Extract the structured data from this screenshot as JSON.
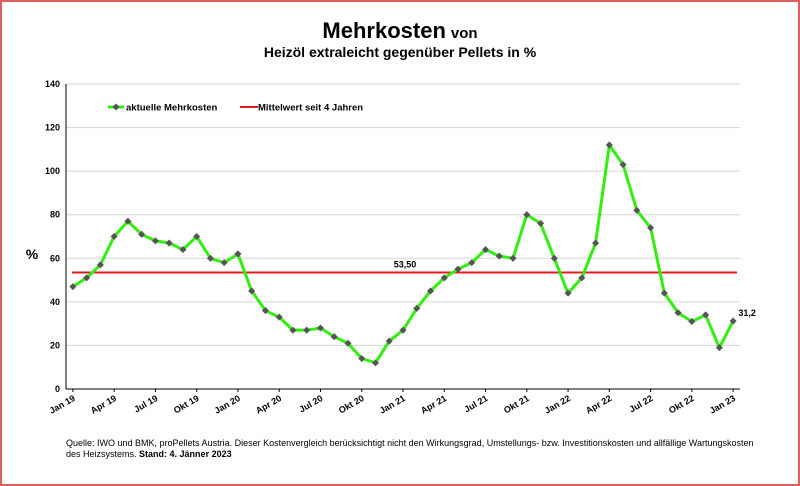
{
  "chart_data": {
    "type": "line",
    "title": "Mehrkosten",
    "title_suffix": "von",
    "subtitle": "Heizöl extraleicht gegenüber Pellets in %",
    "ylabel": "%",
    "ylim": [
      0,
      140
    ],
    "yticks": [
      0,
      20,
      40,
      60,
      80,
      100,
      120,
      140
    ],
    "grid": true,
    "legend_position": "top-left",
    "x_tick_labels": [
      "Jan 19",
      "Apr 19",
      "Jul 19",
      "Okt 19",
      "Jan 20",
      "Apr 20",
      "Jul 20",
      "Okt 20",
      "Jan 21",
      "Apr 21",
      "Jul 21",
      "Okt 21",
      "Jan 22",
      "Apr 22",
      "Jul 22",
      "Okt 22",
      "Jan 23"
    ],
    "x": [
      "Jan 19",
      "Feb 19",
      "Mär 19",
      "Apr 19",
      "Mai 19",
      "Jun 19",
      "Jul 19",
      "Aug 19",
      "Sep 19",
      "Okt 19",
      "Nov 19",
      "Dez 19",
      "Jan 20",
      "Feb 20",
      "Mär 20",
      "Apr 20",
      "Mai 20",
      "Jun 20",
      "Jul 20",
      "Aug 20",
      "Sep 20",
      "Okt 20",
      "Nov 20",
      "Dez 20",
      "Jan 21",
      "Feb 21",
      "Mär 21",
      "Apr 21",
      "Mai 21",
      "Jun 21",
      "Jul 21",
      "Aug 21",
      "Sep 21",
      "Okt 21",
      "Nov 21",
      "Dez 21",
      "Jan 22",
      "Feb 22",
      "Mär 22",
      "Apr 22",
      "Mai 22",
      "Jun 22",
      "Jul 22",
      "Aug 22",
      "Sep 22",
      "Okt 22",
      "Nov 22",
      "Dez 22",
      "Jan 23"
    ],
    "series": [
      {
        "name": "aktuelle Mehrkosten",
        "color": "#33ee11",
        "marker_color": "#555555",
        "values": [
          47,
          51,
          57,
          70,
          77,
          71,
          68,
          67,
          64,
          70,
          60,
          58,
          62,
          45,
          36,
          33,
          27,
          27,
          28,
          24,
          21,
          14,
          12,
          22,
          27,
          37,
          45,
          51,
          55,
          58,
          64,
          61,
          60,
          80,
          76,
          60,
          44,
          51,
          67,
          112,
          103,
          82,
          74,
          44,
          35,
          31,
          34,
          19,
          31.2
        ],
        "end_label": "31,2"
      },
      {
        "name": "Mittelwert seit 4 Jahren",
        "color": "#e41a1c",
        "value": 53.5,
        "label": "53,50"
      }
    ]
  },
  "source_note": "Quelle: IWO und BMK, proPellets Austria. Dieser Kostenvergleich berücksichtigt nicht den Wirkungsgrad, Umstellungs- bzw. Investitionskosten und allfällige Wartungskosten des Heizsystems.",
  "stand_text": "Stand: 4. Jänner 2023"
}
